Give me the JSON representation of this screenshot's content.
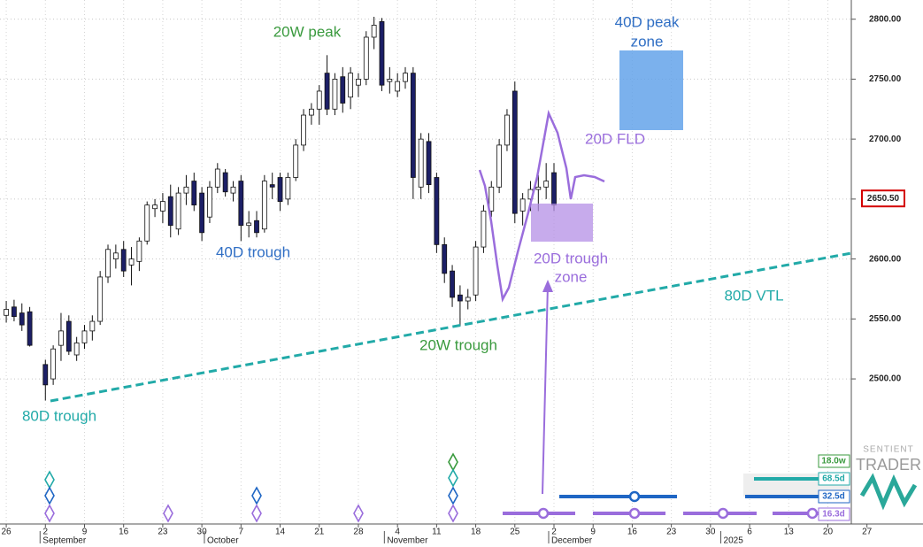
{
  "chart_data": {
    "type": "candlestick",
    "x": [
      0,
      1,
      2,
      3,
      5,
      6,
      7,
      8,
      9,
      10,
      11,
      12,
      13,
      14,
      15,
      16,
      17,
      18,
      19,
      20,
      21,
      22,
      23,
      24,
      25,
      26,
      27,
      28,
      29,
      30,
      31,
      32,
      33,
      34,
      35,
      36,
      37,
      38,
      39,
      40,
      41,
      42,
      43,
      44,
      45,
      46,
      47,
      48,
      49,
      50,
      51,
      52,
      53,
      54,
      55,
      56,
      57,
      58,
      59,
      60,
      61,
      62,
      63,
      64,
      65,
      66,
      67,
      68,
      69,
      70
    ],
    "open": [
      2553,
      2560,
      2555,
      2556,
      2512,
      2500,
      2528,
      2548,
      2520,
      2530,
      2540,
      2548,
      2585,
      2600,
      2608,
      2595,
      2598,
      2615,
      2642,
      2640,
      2652,
      2625,
      2655,
      2665,
      2655,
      2635,
      2660,
      2672,
      2655,
      2665,
      2628,
      2632,
      2625,
      2662,
      2668,
      2650,
      2668,
      2695,
      2720,
      2725,
      2755,
      2725,
      2752,
      2735,
      2745,
      2750,
      2785,
      2798,
      2748,
      2740,
      2748,
      2755,
      2660,
      2698,
      2668,
      2612,
      2590,
      2570,
      2565,
      2570,
      2610,
      2640,
      2660,
      2695,
      2740,
      2640,
      2650,
      2658,
      2660,
      2672
    ],
    "high": [
      2565,
      2566,
      2563,
      2560,
      2516,
      2528,
      2555,
      2553,
      2535,
      2545,
      2553,
      2590,
      2612,
      2612,
      2615,
      2610,
      2618,
      2648,
      2650,
      2655,
      2662,
      2660,
      2670,
      2672,
      2660,
      2665,
      2680,
      2675,
      2665,
      2670,
      2640,
      2640,
      2670,
      2672,
      2672,
      2672,
      2700,
      2725,
      2730,
      2745,
      2770,
      2755,
      2760,
      2760,
      2755,
      2790,
      2802,
      2801,
      2760,
      2755,
      2760,
      2760,
      2705,
      2705,
      2672,
      2618,
      2595,
      2578,
      2575,
      2615,
      2645,
      2665,
      2700,
      2725,
      2748,
      2655,
      2665,
      2670,
      2680,
      2680
    ],
    "low": [
      2547,
      2548,
      2540,
      2527,
      2482,
      2495,
      2515,
      2520,
      2515,
      2525,
      2532,
      2545,
      2580,
      2592,
      2585,
      2578,
      2590,
      2612,
      2635,
      2630,
      2618,
      2620,
      2645,
      2640,
      2615,
      2630,
      2655,
      2652,
      2648,
      2615,
      2618,
      2618,
      2622,
      2650,
      2640,
      2645,
      2665,
      2690,
      2712,
      2712,
      2720,
      2720,
      2722,
      2725,
      2735,
      2745,
      2775,
      2740,
      2738,
      2735,
      2742,
      2650,
      2650,
      2655,
      2605,
      2580,
      2560,
      2544,
      2558,
      2565,
      2605,
      2635,
      2655,
      2690,
      2630,
      2628,
      2640,
      2640,
      2650,
      2640
    ],
    "close": [
      2558,
      2552,
      2545,
      2528,
      2495,
      2525,
      2540,
      2523,
      2530,
      2540,
      2548,
      2585,
      2608,
      2605,
      2590,
      2600,
      2615,
      2645,
      2645,
      2648,
      2628,
      2655,
      2660,
      2645,
      2622,
      2660,
      2675,
      2656,
      2660,
      2628,
      2630,
      2622,
      2665,
      2660,
      2648,
      2668,
      2695,
      2720,
      2725,
      2740,
      2725,
      2750,
      2730,
      2755,
      2750,
      2785,
      2795,
      2745,
      2750,
      2748,
      2755,
      2668,
      2700,
      2662,
      2612,
      2588,
      2568,
      2565,
      2568,
      2610,
      2640,
      2660,
      2695,
      2720,
      2638,
      2650,
      2658,
      2660,
      2665,
      2645
    ],
    "up_color": "#ffffff",
    "down_color": "#1c1f66",
    "xlim": [
      -0.8,
      108
    ],
    "ylim": [
      2379,
      2816
    ],
    "xticks": [
      {
        "value": 0,
        "label": "26"
      },
      {
        "value": 5,
        "label": "2"
      },
      {
        "value": 10,
        "label": "9"
      },
      {
        "value": 15,
        "label": "16"
      },
      {
        "value": 20,
        "label": "23"
      },
      {
        "value": 25,
        "label": "30"
      },
      {
        "value": 30,
        "label": "7"
      },
      {
        "value": 35,
        "label": "14"
      },
      {
        "value": 40,
        "label": "21"
      },
      {
        "value": 45,
        "label": "28"
      },
      {
        "value": 50,
        "label": "4"
      },
      {
        "value": 55,
        "label": "11"
      },
      {
        "value": 60,
        "label": "18"
      },
      {
        "value": 65,
        "label": "25"
      },
      {
        "value": 70,
        "label": "2"
      },
      {
        "value": 75,
        "label": "9"
      },
      {
        "value": 80,
        "label": "16"
      },
      {
        "value": 85,
        "label": "23"
      },
      {
        "value": 90,
        "label": "30"
      },
      {
        "value": 95,
        "label": "6"
      },
      {
        "value": 100,
        "label": "13"
      },
      {
        "value": 105,
        "label": "20"
      },
      {
        "value": 110,
        "label": "27"
      }
    ],
    "month_ticks": [
      {
        "value": 5,
        "label": "September"
      },
      {
        "value": 26,
        "label": "October"
      },
      {
        "value": 49,
        "label": "November"
      },
      {
        "value": 70,
        "label": "December"
      },
      {
        "value": 92,
        "label": "2025"
      }
    ],
    "yticks": [
      {
        "value": 2500,
        "label": "2500.00"
      },
      {
        "value": 2550,
        "label": "2550.00"
      },
      {
        "value": 2600,
        "label": "2600.00"
      },
      {
        "value": 2650,
        "label": "2650.00"
      },
      {
        "value": 2700,
        "label": "2700.00"
      },
      {
        "value": 2750,
        "label": "2750.00"
      },
      {
        "value": 2800,
        "label": "2800.00"
      }
    ],
    "grid": true,
    "last_price": {
      "value": 2650.5,
      "label": "2650.50"
    },
    "annotations": [
      "20W peak",
      "40D peak",
      "zone",
      "20D FLD",
      "40D trough",
      "20D trough",
      "zone",
      "80D VTL",
      "20W trough",
      "80D trough"
    ],
    "cycle_labels": [
      "18.0w",
      "68.5d",
      "32.5d",
      "16.3d"
    ],
    "logo": [
      "SENTIENT",
      "TRADER"
    ]
  }
}
